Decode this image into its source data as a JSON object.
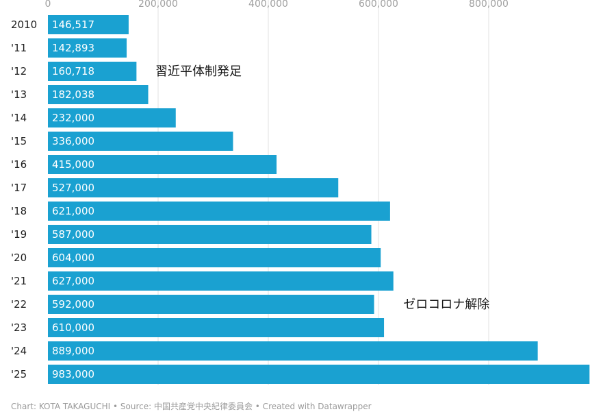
{
  "chart_data": {
    "type": "bar",
    "orientation": "horizontal",
    "categories": [
      "2010",
      "'11",
      "'12",
      "'13",
      "'14",
      "'15",
      "'16",
      "'17",
      "'18",
      "'19",
      "'20",
      "'21",
      "'22",
      "'23",
      "'24",
      "'25"
    ],
    "values": [
      146517,
      142893,
      160718,
      182038,
      232000,
      336000,
      415000,
      527000,
      621000,
      587000,
      604000,
      627000,
      592000,
      610000,
      889000,
      983000
    ],
    "value_labels": [
      "146,517",
      "142,893",
      "160,718",
      "182,038",
      "232,000",
      "336,000",
      "415,000",
      "527,000",
      "621,000",
      "587,000",
      "604,000",
      "627,000",
      "592,000",
      "610,000",
      "889,000",
      "983,000"
    ],
    "x_ticks": [
      0,
      200000,
      400000,
      600000,
      800000
    ],
    "x_tick_labels": [
      "0",
      "200,000",
      "400,000",
      "600,000",
      "800,000"
    ],
    "xlim": [
      0,
      1000000
    ],
    "grid": true,
    "bar_color": "#1aa1d1",
    "annotations": [
      {
        "text": "習近平体制発足",
        "category": "'12",
        "value": 195000
      },
      {
        "text": "ゼロコロナ解除",
        "category": "'22",
        "value": 645000
      }
    ],
    "footer": "Chart: KOTA TAKAGUCHI • Source: 中国共産党中央紀律委員会 • Created with Datawrapper"
  }
}
